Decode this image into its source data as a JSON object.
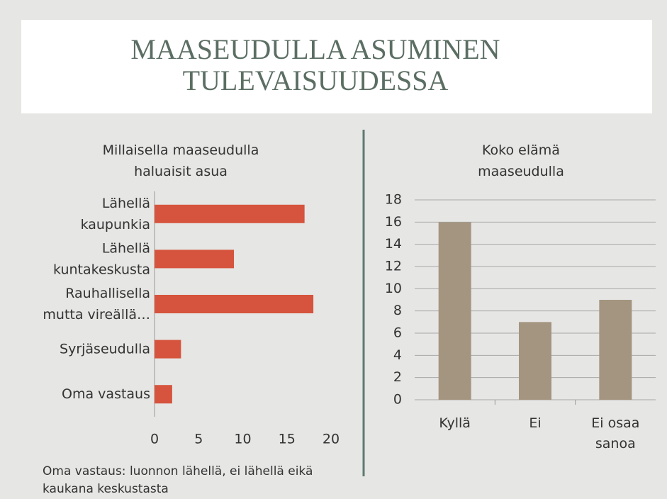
{
  "title": "MAASEUDULLA ASUMINEN TULEVAISUUDESSA",
  "note": "Oma vastaus: luonnon lähellä, ei lähellä eikä kaukana keskustasta",
  "chart_data": [
    {
      "type": "hbar",
      "title": "Millaisella maaseudulla haluaisit asua",
      "categories": [
        "Lähellä kaupunkia",
        "Lähellä kuntakeskusta",
        "Rauhallisella mutta vireällä…",
        "Syrjäseudulla",
        "Oma vastaus"
      ],
      "values": [
        17,
        9,
        18,
        3,
        2
      ],
      "color": "#d6543d",
      "xlim": [
        0,
        20
      ],
      "xticks": [
        0,
        5,
        10,
        15,
        20
      ],
      "grid": false
    },
    {
      "type": "bar",
      "title": "Koko elämä maaseudulla",
      "categories": [
        "Kyllä",
        "Ei",
        "Ei osaa sanoa"
      ],
      "values": [
        16,
        7,
        9
      ],
      "color": "#a49581",
      "ylim": [
        0,
        18
      ],
      "yticks": [
        0,
        2,
        4,
        6,
        8,
        10,
        12,
        14,
        16,
        18
      ],
      "grid": true
    }
  ]
}
